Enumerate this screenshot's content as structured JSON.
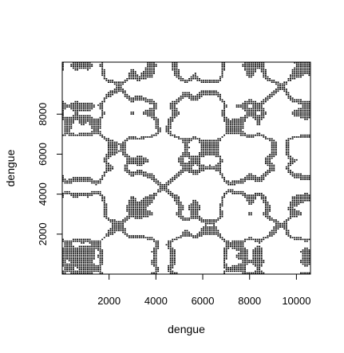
{
  "chart_data": {
    "type": "heatmap",
    "title": "",
    "xlabel": "dengue",
    "ylabel": "dengue",
    "x_ticks": [
      2000,
      4000,
      6000,
      8000,
      10000
    ],
    "y_ticks": [
      2000,
      4000,
      6000,
      8000
    ],
    "xlim": [
      1,
      10600
    ],
    "ylim": [
      1,
      10600
    ],
    "grid": false,
    "legend": "none",
    "colors": {
      "marks": "#000000",
      "background": "#ffffff"
    },
    "description_of_marks": "dense dot matrix (recurrence-style pairwise plot of the dengue series against itself)"
  }
}
